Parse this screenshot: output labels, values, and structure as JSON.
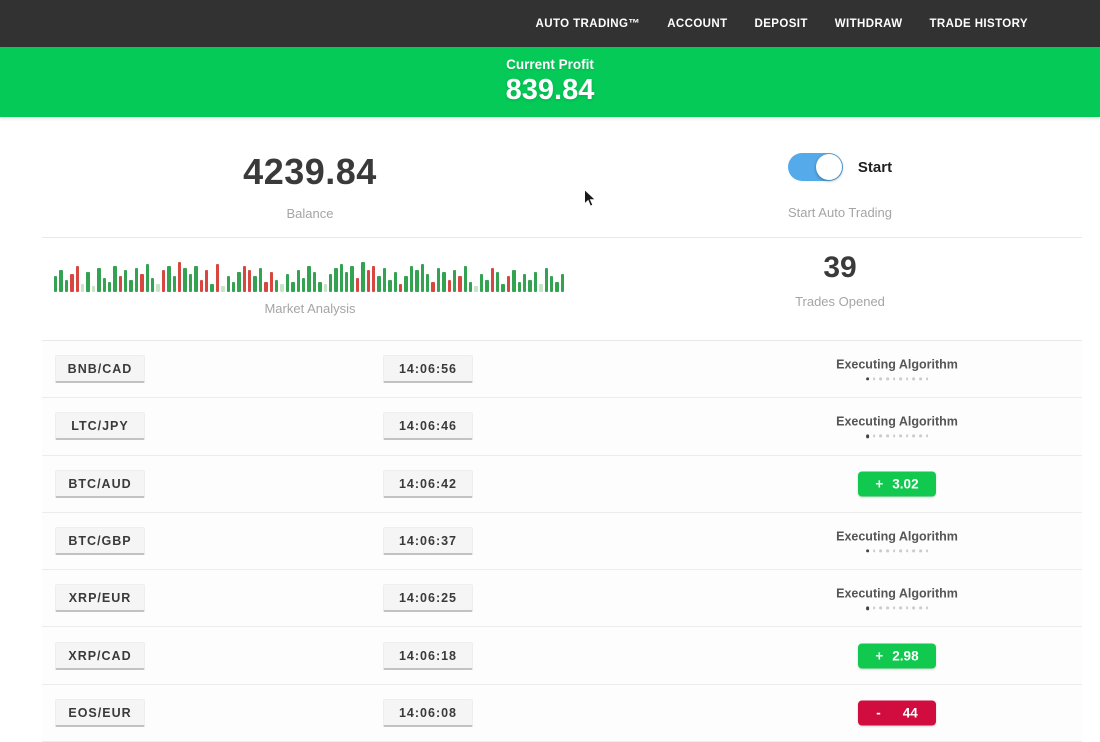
{
  "nav": {
    "items": [
      {
        "id": "auto-trading",
        "label": "AUTO TRADING™"
      },
      {
        "id": "account",
        "label": "ACCOUNT"
      },
      {
        "id": "deposit",
        "label": "DEPOSIT"
      },
      {
        "id": "withdraw",
        "label": "WITHDRAW"
      },
      {
        "id": "trade-history",
        "label": "TRADE HISTORY"
      }
    ]
  },
  "banner": {
    "title": "Current Profit",
    "value": "839.84"
  },
  "stats": {
    "balance_value": "4239.84",
    "balance_label": "Balance",
    "toggle_label": "Start",
    "toggle_sublabel": "Start Auto Trading",
    "toggle_state": "on",
    "market_label": "Market Analysis",
    "trades_opened_value": "39",
    "trades_opened_label": "Trades Opened"
  },
  "chart_data": {
    "type": "bar",
    "title": "Market Analysis",
    "note": "decorative mini market bars, no axes or tick labels shown; values are relative bar heights in px with color key",
    "palette": {
      "g": "#33a352",
      "r": "#d8473f",
      "lg": "#c8e4c8"
    },
    "bars": [
      [
        16,
        "g"
      ],
      [
        22,
        "g"
      ],
      [
        12,
        "g"
      ],
      [
        18,
        "r"
      ],
      [
        26,
        "r"
      ],
      [
        8,
        "lg"
      ],
      [
        20,
        "g"
      ],
      [
        6,
        "lg"
      ],
      [
        24,
        "g"
      ],
      [
        14,
        "g"
      ],
      [
        10,
        "g"
      ],
      [
        26,
        "g"
      ],
      [
        16,
        "r"
      ],
      [
        22,
        "g"
      ],
      [
        12,
        "g"
      ],
      [
        24,
        "g"
      ],
      [
        18,
        "r"
      ],
      [
        28,
        "g"
      ],
      [
        14,
        "g"
      ],
      [
        8,
        "lg"
      ],
      [
        22,
        "r"
      ],
      [
        26,
        "g"
      ],
      [
        16,
        "g"
      ],
      [
        30,
        "r"
      ],
      [
        24,
        "g"
      ],
      [
        18,
        "g"
      ],
      [
        26,
        "g"
      ],
      [
        12,
        "r"
      ],
      [
        22,
        "r"
      ],
      [
        8,
        "g"
      ],
      [
        28,
        "r"
      ],
      [
        6,
        "lg"
      ],
      [
        16,
        "g"
      ],
      [
        10,
        "g"
      ],
      [
        20,
        "g"
      ],
      [
        26,
        "r"
      ],
      [
        22,
        "r"
      ],
      [
        16,
        "g"
      ],
      [
        24,
        "g"
      ],
      [
        10,
        "r"
      ],
      [
        20,
        "r"
      ],
      [
        12,
        "g"
      ],
      [
        8,
        "lg"
      ],
      [
        18,
        "g"
      ],
      [
        10,
        "g"
      ],
      [
        22,
        "g"
      ],
      [
        14,
        "g"
      ],
      [
        26,
        "g"
      ],
      [
        20,
        "g"
      ],
      [
        10,
        "g"
      ],
      [
        8,
        "lg"
      ],
      [
        18,
        "g"
      ],
      [
        24,
        "g"
      ],
      [
        28,
        "g"
      ],
      [
        20,
        "g"
      ],
      [
        26,
        "g"
      ],
      [
        14,
        "r"
      ],
      [
        30,
        "g"
      ],
      [
        22,
        "r"
      ],
      [
        26,
        "r"
      ],
      [
        16,
        "g"
      ],
      [
        24,
        "g"
      ],
      [
        12,
        "g"
      ],
      [
        20,
        "g"
      ],
      [
        8,
        "r"
      ],
      [
        16,
        "g"
      ],
      [
        26,
        "g"
      ],
      [
        22,
        "g"
      ],
      [
        28,
        "g"
      ],
      [
        18,
        "g"
      ],
      [
        10,
        "r"
      ],
      [
        24,
        "g"
      ],
      [
        20,
        "g"
      ],
      [
        12,
        "r"
      ],
      [
        22,
        "g"
      ],
      [
        16,
        "r"
      ],
      [
        26,
        "g"
      ],
      [
        10,
        "g"
      ],
      [
        6,
        "lg"
      ],
      [
        18,
        "g"
      ],
      [
        12,
        "g"
      ],
      [
        24,
        "r"
      ],
      [
        20,
        "g"
      ],
      [
        8,
        "g"
      ],
      [
        16,
        "r"
      ],
      [
        22,
        "g"
      ],
      [
        10,
        "g"
      ],
      [
        18,
        "g"
      ],
      [
        12,
        "g"
      ],
      [
        20,
        "g"
      ],
      [
        8,
        "lg"
      ],
      [
        24,
        "g"
      ],
      [
        16,
        "g"
      ],
      [
        10,
        "g"
      ],
      [
        18,
        "g"
      ]
    ]
  },
  "trades": [
    {
      "pair": "BNB/CAD",
      "time": "14:06:56",
      "status": {
        "type": "executing",
        "label": "Executing Algorithm"
      }
    },
    {
      "pair": "LTC/JPY",
      "time": "14:06:46",
      "status": {
        "type": "executing",
        "label": "Executing Algorithm"
      }
    },
    {
      "pair": "BTC/AUD",
      "time": "14:06:42",
      "status": {
        "type": "profit",
        "sign": "+",
        "value": "3.02"
      }
    },
    {
      "pair": "BTC/GBP",
      "time": "14:06:37",
      "status": {
        "type": "executing",
        "label": "Executing Algorithm"
      }
    },
    {
      "pair": "XRP/EUR",
      "time": "14:06:25",
      "status": {
        "type": "executing",
        "label": "Executing Algorithm"
      }
    },
    {
      "pair": "XRP/CAD",
      "time": "14:06:18",
      "status": {
        "type": "profit",
        "sign": "+",
        "value": "2.98"
      }
    },
    {
      "pair": "EOS/EUR",
      "time": "14:06:08",
      "status": {
        "type": "loss",
        "sign": "-",
        "value": "44"
      }
    }
  ],
  "colors": {
    "navbar_bg": "#323232",
    "banner_green": "#06ca57",
    "profit_badge_green": "#10c94e",
    "loss_badge_red": "#d00d3e",
    "toggle_blue": "#55aae9"
  }
}
